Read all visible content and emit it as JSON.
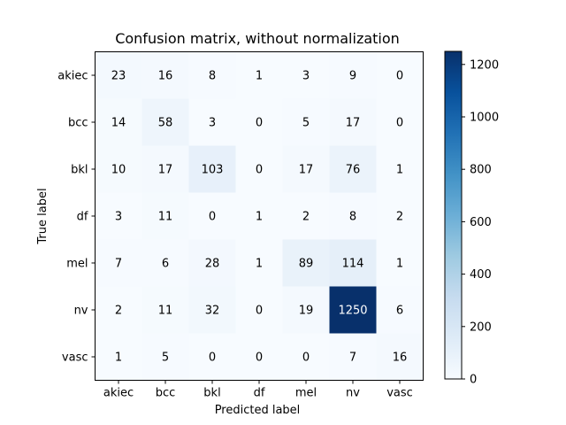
{
  "chart_data": {
    "type": "heatmap",
    "title": "Confusion matrix, without normalization",
    "xlabel": "Predicted label",
    "ylabel": "True label",
    "x_categories": [
      "akiec",
      "bcc",
      "bkl",
      "df",
      "mel",
      "nv",
      "vasc"
    ],
    "y_categories": [
      "akiec",
      "bcc",
      "bkl",
      "df",
      "mel",
      "nv",
      "vasc"
    ],
    "values": [
      [
        23,
        16,
        8,
        1,
        3,
        9,
        0
      ],
      [
        14,
        58,
        3,
        0,
        5,
        17,
        0
      ],
      [
        10,
        17,
        103,
        0,
        17,
        76,
        1
      ],
      [
        3,
        11,
        0,
        1,
        2,
        8,
        2
      ],
      [
        7,
        6,
        28,
        1,
        89,
        114,
        1
      ],
      [
        2,
        11,
        32,
        0,
        19,
        1250,
        6
      ],
      [
        1,
        5,
        0,
        0,
        0,
        7,
        16
      ]
    ],
    "colormap": "Blues",
    "color_range": [
      0,
      1250
    ],
    "colorbar_ticks": [
      0,
      200,
      400,
      600,
      800,
      1000,
      1200
    ]
  }
}
